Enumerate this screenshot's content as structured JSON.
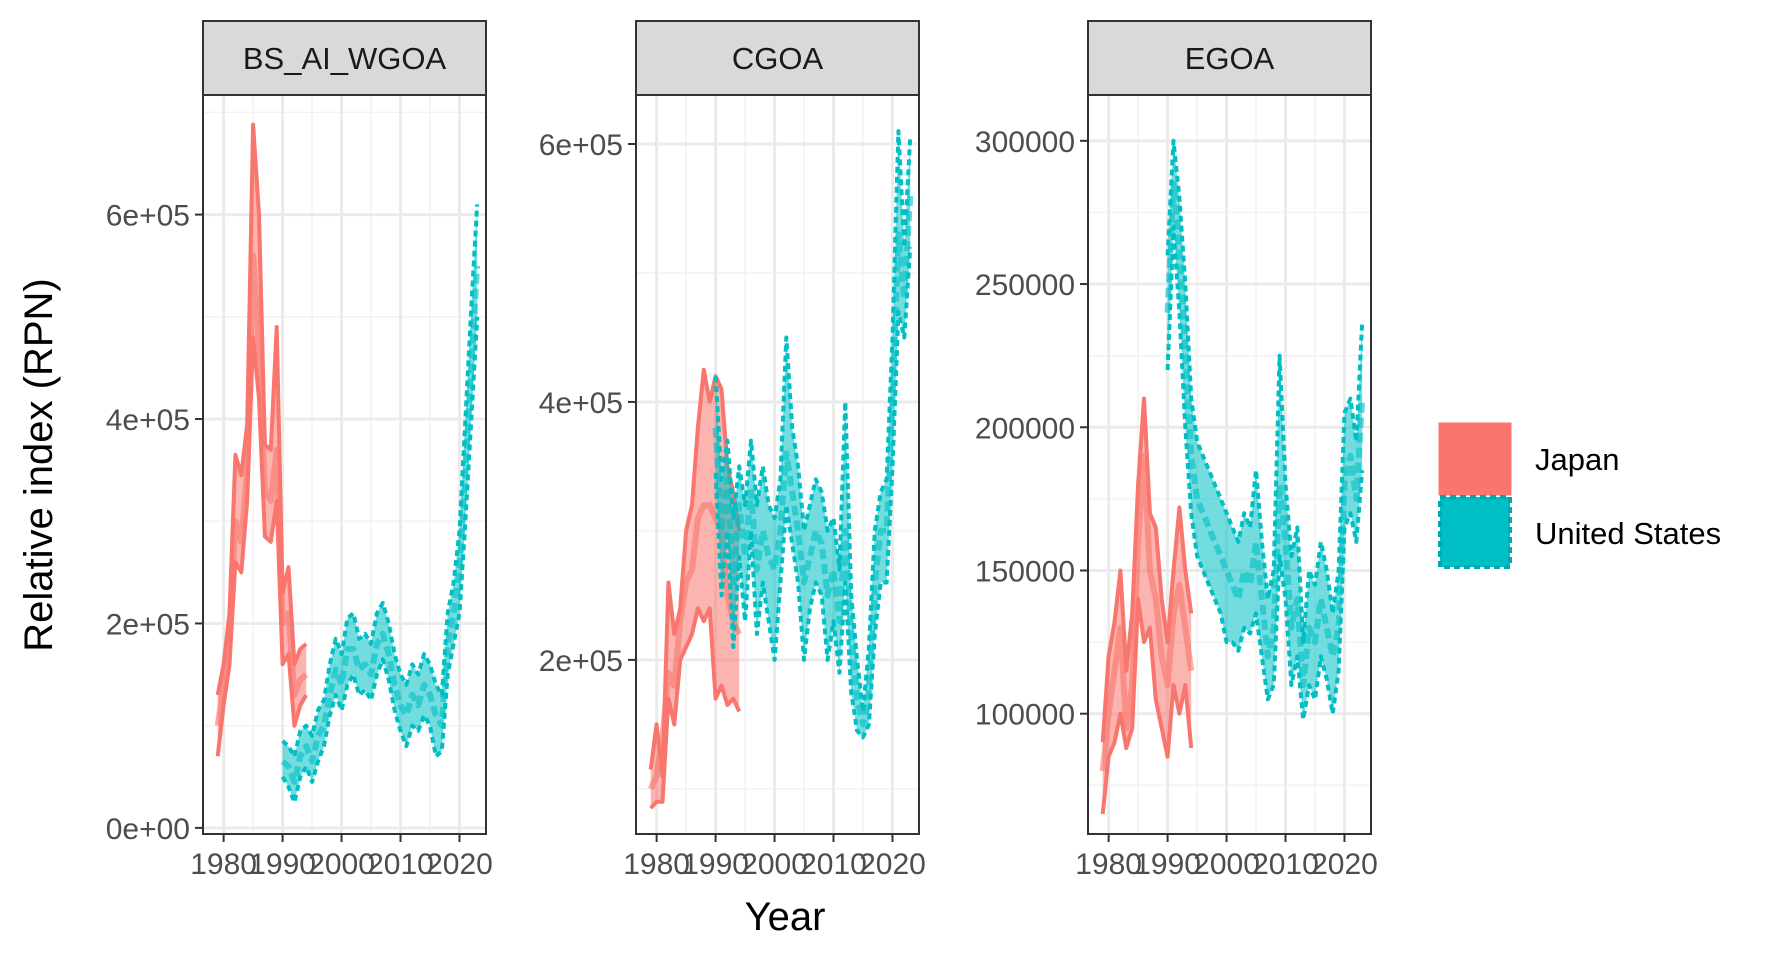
{
  "chart_data": {
    "type": "line",
    "xlabel": "Year",
    "ylabel": "Relative index (RPN)",
    "legend_position": "right",
    "legend": [
      {
        "name": "Japan",
        "color": "#F8766D",
        "linestyle": "solid"
      },
      {
        "name": "United States",
        "color": "#00BFC4",
        "linestyle": "dashed"
      }
    ],
    "x_ticks": [
      1980,
      1990,
      2000,
      2010,
      2020
    ],
    "panels": [
      {
        "strip": "BS_AI_WGOA",
        "xlim": [
          1976.5,
          2024.5
        ],
        "ylim": [
          -6000,
          717000
        ],
        "y_ticks": [
          0,
          200000,
          400000,
          600000
        ],
        "y_tick_labels": [
          "0e+00",
          "2e+05",
          "4e+05",
          "6e+05"
        ],
        "series": [
          {
            "name": "Japan",
            "x": [
              1979,
              1980,
              1981,
              1982,
              1983,
              1984,
              1985,
              1986,
              1987,
              1988,
              1989,
              1990,
              1991,
              1992,
              1993,
              1994
            ],
            "y": [
              100000,
              140000,
              190000,
              300000,
              280000,
              350000,
              560000,
              470000,
              330000,
              320000,
              370000,
              200000,
              210000,
              130000,
              145000,
              150000
            ],
            "lower": [
              70000,
              120000,
              160000,
              260000,
              250000,
              320000,
              480000,
              420000,
              285000,
              280000,
              320000,
              160000,
              170000,
              100000,
              120000,
              130000
            ],
            "upper": [
              130000,
              160000,
              210000,
              365000,
              345000,
              395000,
              688000,
              600000,
              375000,
              370000,
              490000,
              230000,
              255000,
              160000,
              175000,
              180000
            ]
          },
          {
            "name": "United States",
            "x": [
              1990,
              1991,
              1992,
              1993,
              1994,
              1995,
              1996,
              1997,
              1998,
              1999,
              2000,
              2001,
              2002,
              2003,
              2004,
              2005,
              2006,
              2007,
              2008,
              2009,
              2010,
              2011,
              2012,
              2013,
              2014,
              2015,
              2016,
              2017,
              2018,
              2019,
              2020,
              2021,
              2022,
              2023
            ],
            "y": [
              65000,
              60000,
              45000,
              70000,
              80000,
              65000,
              90000,
              100000,
              130000,
              155000,
              140000,
              175000,
              175000,
              155000,
              160000,
              150000,
              180000,
              190000,
              170000,
              140000,
              120000,
              110000,
              130000,
              120000,
              140000,
              130000,
              110000,
              100000,
              180000,
              210000,
              250000,
              350000,
              450000,
              550000
            ],
            "lower": [
              50000,
              40000,
              25000,
              50000,
              60000,
              45000,
              65000,
              80000,
              110000,
              130000,
              115000,
              140000,
              150000,
              130000,
              135000,
              125000,
              150000,
              165000,
              145000,
              115000,
              95000,
              80000,
              100000,
              95000,
              110000,
              100000,
              70000,
              75000,
              150000,
              180000,
              210000,
              300000,
              400000,
              500000
            ],
            "upper": [
              85000,
              80000,
              70000,
              95000,
              100000,
              90000,
              115000,
              125000,
              160000,
              185000,
              170000,
              205000,
              210000,
              185000,
              190000,
              180000,
              210000,
              220000,
              200000,
              170000,
              150000,
              140000,
              160000,
              150000,
              170000,
              160000,
              140000,
              130000,
              210000,
              240000,
              290000,
              400000,
              510000,
              610000
            ]
          }
        ]
      },
      {
        "strip": "CGOA",
        "xlim": [
          1976.5,
          2024.5
        ],
        "ylim": [
          65000,
          638000
        ],
        "y_ticks": [
          200000,
          400000,
          600000
        ],
        "y_tick_labels": [
          "2e+05",
          "4e+05",
          "6e+05"
        ],
        "series": [
          {
            "name": "Japan",
            "x": [
              1979,
              1980,
              1981,
              1982,
              1983,
              1984,
              1985,
              1986,
              1987,
              1988,
              1989,
              1990,
              1991,
              1992,
              1993,
              1994
            ],
            "y": [
              100000,
              110000,
              140000,
              190000,
              180000,
              230000,
              260000,
              270000,
              310000,
              320000,
              320000,
              310000,
              300000,
              250000,
              230000,
              220000
            ],
            "lower": [
              85000,
              90000,
              90000,
              170000,
              150000,
              200000,
              210000,
              220000,
              240000,
              230000,
              240000,
              170000,
              180000,
              165000,
              170000,
              160000
            ],
            "upper": [
              115000,
              150000,
              110000,
              260000,
              220000,
              240000,
              300000,
              320000,
              380000,
              425000,
              400000,
              420000,
              410000,
              350000,
              330000,
              300000
            ]
          },
          {
            "name": "United States",
            "x": [
              1990,
              1991,
              1992,
              1993,
              1994,
              1995,
              1996,
              1997,
              1998,
              1999,
              2000,
              2001,
              2002,
              2003,
              2004,
              2005,
              2006,
              2007,
              2008,
              2009,
              2010,
              2011,
              2012,
              2013,
              2014,
              2015,
              2016,
              2017,
              2018,
              2019,
              2020,
              2021,
              2022,
              2023
            ],
            "y": [
              380000,
              300000,
              340000,
              260000,
              320000,
              280000,
              330000,
              270000,
              300000,
              280000,
              270000,
              300000,
              360000,
              330000,
              300000,
              260000,
              280000,
              300000,
              290000,
              250000,
              270000,
              230000,
              300000,
              220000,
              170000,
              150000,
              170000,
              260000,
              300000,
              300000,
              400000,
              530000,
              480000,
              560000
            ],
            "lower": [
              345000,
              250000,
              300000,
              210000,
              280000,
              230000,
              300000,
              220000,
              260000,
              230000,
              200000,
              260000,
              320000,
              290000,
              260000,
              200000,
              240000,
              260000,
              250000,
              200000,
              230000,
              190000,
              260000,
              175000,
              145000,
              140000,
              150000,
              220000,
              260000,
              260000,
              350000,
              470000,
              450000,
              520000
            ],
            "upper": [
              420000,
              340000,
              370000,
              310000,
              350000,
              320000,
              370000,
              320000,
              350000,
              320000,
              310000,
              340000,
              450000,
              380000,
              350000,
              300000,
              320000,
              340000,
              330000,
              300000,
              310000,
              270000,
              400000,
              250000,
              200000,
              160000,
              210000,
              300000,
              330000,
              340000,
              450000,
              610000,
              520000,
              605000
            ]
          }
        ]
      },
      {
        "strip": "EGOA",
        "xlim": [
          1976.5,
          2024.5
        ],
        "ylim": [
          58000,
          316000
        ],
        "y_ticks": [
          100000,
          150000,
          200000,
          250000,
          300000
        ],
        "y_tick_labels": [
          "100000",
          "150000",
          "200000",
          "250000",
          "300000"
        ],
        "series": [
          {
            "name": "Japan",
            "x": [
              1979,
              1980,
              1981,
              1982,
              1983,
              1984,
              1985,
              1986,
              1987,
              1988,
              1989,
              1990,
              1991,
              1992,
              1993,
              1994
            ],
            "y": [
              80000,
              100000,
              115000,
              130000,
              95000,
              110000,
              160000,
              190000,
              150000,
              140000,
              120000,
              110000,
              135000,
              145000,
              130000,
              115000
            ],
            "lower": [
              65000,
              85000,
              90000,
              100000,
              88000,
              95000,
              140000,
              125000,
              130000,
              105000,
              95000,
              85000,
              110000,
              100000,
              110000,
              88000
            ],
            "upper": [
              90000,
              120000,
              132000,
              150000,
              115000,
              135000,
              180000,
              210000,
              170000,
              165000,
              140000,
              125000,
              150000,
              172000,
              150000,
              135000
            ]
          },
          {
            "name": "United States",
            "x": [
              1990,
              1991,
              1992,
              1993,
              1994,
              1995,
              1996,
              1997,
              1998,
              1999,
              2000,
              2001,
              2002,
              2003,
              2004,
              2005,
              2006,
              2007,
              2008,
              2009,
              2010,
              2011,
              2012,
              2013,
              2014,
              2015,
              2016,
              2017,
              2018,
              2019,
              2020,
              2021,
              2022,
              2023
            ],
            "y": [
              240000,
              285000,
              260000,
              230000,
              190000,
              175000,
              170000,
              165000,
              160000,
              155000,
              150000,
              145000,
              140000,
              150000,
              145000,
              160000,
              140000,
              120000,
              130000,
              180000,
              160000,
              130000,
              140000,
              110000,
              130000,
              125000,
              140000,
              130000,
              120000,
              130000,
              180000,
              190000,
              175000,
              210000
            ],
            "lower": [
              220000,
              270000,
              240000,
              200000,
              170000,
              155000,
              150000,
              145000,
              140000,
              135000,
              125000,
              125000,
              122000,
              130000,
              128000,
              135000,
              120000,
              105000,
              110000,
              155000,
              140000,
              110000,
              120000,
              98000,
              110000,
              105000,
              120000,
              112000,
              100000,
              115000,
              165000,
              170000,
              160000,
              185000
            ],
            "upper": [
              260000,
              300000,
              280000,
              250000,
              210000,
              195000,
              190000,
              185000,
              180000,
              175000,
              170000,
              165000,
              160000,
              170000,
              165000,
              185000,
              160000,
              140000,
              150000,
              225000,
              180000,
              155000,
              165000,
              125000,
              150000,
              145000,
              160000,
              150000,
              135000,
              150000,
              205000,
              210000,
              195000,
              237000
            ]
          }
        ]
      }
    ]
  }
}
